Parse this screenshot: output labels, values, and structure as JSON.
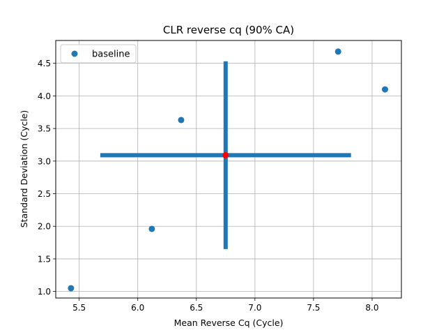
{
  "chart_data": {
    "type": "scatter",
    "title": "CLR reverse cq (90% CA)",
    "xlabel": "Mean Reverse Cq (Cycle)",
    "ylabel": "Standard Deviation (Cycle)",
    "xlim": [
      5.3,
      8.25
    ],
    "ylim": [
      0.9,
      4.85
    ],
    "xticks": [
      5.5,
      6.0,
      6.5,
      7.0,
      7.5,
      8.0
    ],
    "yticks": [
      1.0,
      1.5,
      2.0,
      2.5,
      3.0,
      3.5,
      4.0,
      4.5
    ],
    "xtick_labels": [
      "5.5",
      "6.0",
      "6.5",
      "7.0",
      "7.5",
      "8.0"
    ],
    "ytick_labels": [
      "1.0",
      "1.5",
      "2.0",
      "2.5",
      "3.0",
      "3.5",
      "4.0",
      "4.5"
    ],
    "grid": true,
    "legend_position": "top-left",
    "series": [
      {
        "name": "baseline",
        "color": "#1f77b4",
        "points": [
          {
            "x": 5.43,
            "y": 1.05
          },
          {
            "x": 6.12,
            "y": 1.96
          },
          {
            "x": 6.37,
            "y": 3.63
          },
          {
            "x": 7.71,
            "y": 4.68
          },
          {
            "x": 8.11,
            "y": 4.1
          }
        ]
      }
    ],
    "center": {
      "x": 6.75,
      "y": 3.09,
      "color": "#ff0000"
    },
    "error_bars": {
      "color": "#1f77b4",
      "x_range": [
        5.68,
        7.82
      ],
      "y_range": [
        1.65,
        4.53
      ]
    }
  }
}
